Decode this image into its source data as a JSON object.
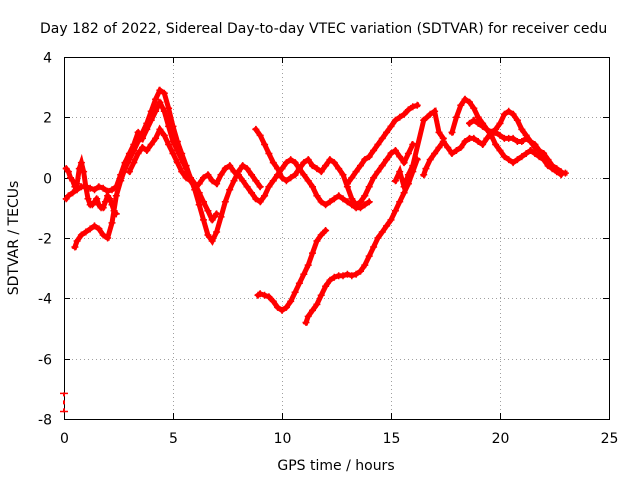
{
  "chart_data": {
    "type": "scatter",
    "title": "Day 182 of 2022, Sidereal Day-to-day VTEC variation (SDTVAR) for receiver cedu",
    "xlabel": "GPS time / hours",
    "ylabel": "SDTVAR / TECUs",
    "xlim": [
      0,
      25
    ],
    "ylim": [
      -8,
      4
    ],
    "xticks": [
      "0",
      "5",
      "10",
      "15",
      "20",
      "25"
    ],
    "yticks": [
      "-8",
      "-6",
      "-4",
      "-2",
      "0",
      "2",
      "4"
    ],
    "grid": true,
    "marker": "plus",
    "color": "#ff0000",
    "series": [
      {
        "name": "s1",
        "x": [
          0.1,
          0.2,
          0.4,
          0.6,
          0.8,
          1.0,
          1.2,
          1.4,
          1.6,
          1.8,
          2.0,
          2.2,
          2.4,
          2.6,
          2.8,
          3.0,
          3.2,
          3.4,
          3.6,
          3.8,
          4.0,
          4.2,
          4.4,
          4.6,
          4.8,
          5.0,
          5.2,
          5.4,
          5.6,
          5.8,
          6.0,
          6.2,
          6.4,
          6.6,
          6.8,
          7.0
        ],
        "y": [
          -0.7,
          -0.6,
          -0.5,
          -0.4,
          -0.3,
          -0.3,
          -0.35,
          -0.4,
          -0.3,
          -0.35,
          -0.45,
          -0.4,
          -0.3,
          0.1,
          0.5,
          0.8,
          1.1,
          1.5,
          1.3,
          1.6,
          1.9,
          2.2,
          2.5,
          2.2,
          1.7,
          1.2,
          0.9,
          0.6,
          0.3,
          0.0,
          -0.2,
          -0.5,
          -0.8,
          -1.1,
          -1.4,
          -1.2
        ]
      },
      {
        "name": "s2",
        "x": [
          0.5,
          0.6,
          0.8,
          1.0,
          1.2,
          1.4,
          1.6,
          1.8,
          2.0,
          2.2,
          2.4,
          2.6,
          2.8,
          3.0,
          3.2,
          3.4,
          3.6,
          3.8,
          4.0,
          4.2,
          4.4,
          4.6,
          4.8,
          5.0,
          5.2,
          5.4,
          5.6,
          5.8,
          6.0,
          6.2,
          6.4,
          6.6,
          6.8,
          7.0,
          7.2,
          7.4,
          7.6,
          7.8,
          8.0,
          8.2,
          8.4,
          8.6,
          8.8,
          9.0
        ],
        "y": [
          -2.3,
          -2.1,
          -1.9,
          -1.8,
          -1.7,
          -1.6,
          -1.7,
          -1.9,
          -2.0,
          -1.5,
          -0.6,
          -0.1,
          0.3,
          0.6,
          0.9,
          1.2,
          1.5,
          1.8,
          2.2,
          2.6,
          2.9,
          2.8,
          2.3,
          1.7,
          1.2,
          0.8,
          0.4,
          0.0,
          -0.4,
          -0.9,
          -1.4,
          -1.9,
          -2.1,
          -1.8,
          -1.3,
          -0.8,
          -0.4,
          -0.1,
          0.2,
          0.4,
          0.3,
          0.1,
          -0.1,
          -0.3
        ]
      },
      {
        "name": "s3",
        "x": [
          0.1,
          0.2,
          0.3,
          0.4,
          0.5,
          0.6,
          0.7,
          0.8,
          0.9,
          1.0,
          1.1,
          1.2,
          1.3,
          1.4,
          1.5,
          1.6,
          1.7,
          1.8,
          1.9,
          2.0,
          2.1,
          2.2,
          2.3,
          2.4
        ],
        "y": [
          0.3,
          0.2,
          0.0,
          -0.1,
          -0.3,
          -0.2,
          0.3,
          0.5,
          0.2,
          -0.3,
          -0.7,
          -0.9,
          -0.9,
          -0.8,
          -0.7,
          -0.9,
          -1.0,
          -1.0,
          -0.8,
          -0.6,
          -0.7,
          -0.9,
          -1.1,
          -1.2
        ]
      },
      {
        "name": "s4",
        "x": [
          3.0,
          3.2,
          3.4,
          3.6,
          3.8,
          4.0,
          4.2,
          4.4,
          4.6,
          4.8,
          5.0,
          5.2,
          5.4,
          5.6,
          5.8,
          6.0,
          6.2,
          6.4,
          6.6,
          6.8,
          7.0,
          7.2,
          7.4,
          7.6,
          7.8,
          8.0,
          8.2,
          8.4,
          8.6,
          8.8,
          9.0,
          9.2,
          9.4,
          9.6,
          9.8,
          10.0,
          10.2,
          10.4,
          10.6,
          10.8,
          11.0,
          11.2,
          11.4,
          11.6,
          11.8,
          12.0,
          12.2,
          12.4,
          12.6,
          12.8,
          13.0,
          13.2,
          13.4,
          13.6,
          13.8,
          14.0
        ],
        "y": [
          0.2,
          0.5,
          0.8,
          1.0,
          0.9,
          1.1,
          1.3,
          1.6,
          1.4,
          1.1,
          0.8,
          0.5,
          0.2,
          0.0,
          -0.1,
          -0.3,
          -0.2,
          0.0,
          0.1,
          -0.1,
          -0.2,
          0.1,
          0.3,
          0.4,
          0.2,
          0.1,
          -0.1,
          -0.3,
          -0.5,
          -0.7,
          -0.8,
          -0.6,
          -0.3,
          -0.1,
          0.1,
          0.3,
          0.5,
          0.6,
          0.5,
          0.3,
          0.1,
          -0.1,
          -0.3,
          -0.6,
          -0.8,
          -0.9,
          -0.8,
          -0.7,
          -0.6,
          -0.7,
          -0.8,
          -0.9,
          -1.0,
          -1.0,
          -0.9,
          -0.8
        ]
      },
      {
        "name": "s5",
        "x": [
          8.8,
          9.0,
          9.2,
          9.4,
          9.6,
          9.8,
          10.0,
          10.2,
          10.4,
          10.6,
          10.8,
          11.0,
          11.2,
          11.4,
          11.6,
          11.8,
          12.0,
          12.2,
          12.4,
          12.6,
          12.8,
          13.0,
          13.2,
          13.4,
          13.6,
          13.8,
          14.0,
          14.2,
          14.4,
          14.6,
          14.8,
          15.0,
          15.2,
          15.4,
          15.6,
          15.8,
          16.0
        ],
        "y": [
          1.6,
          1.4,
          1.1,
          0.8,
          0.5,
          0.3,
          0.0,
          -0.1,
          0.0,
          0.1,
          0.3,
          0.5,
          0.6,
          0.4,
          0.3,
          0.2,
          0.4,
          0.6,
          0.5,
          0.3,
          0.1,
          -0.3,
          -0.7,
          -0.9,
          -0.8,
          -0.6,
          -0.3,
          0.0,
          0.2,
          0.4,
          0.6,
          0.8,
          0.9,
          0.7,
          0.5,
          0.8,
          1.1
        ]
      },
      {
        "name": "s6",
        "x": [
          8.9,
          9.0,
          9.2,
          9.4,
          9.6,
          9.8,
          10.0,
          10.2,
          10.4,
          10.6,
          10.8,
          11.0,
          11.2,
          11.4,
          11.6,
          11.8,
          12.0
        ],
        "y": [
          -3.9,
          -3.85,
          -3.9,
          -3.95,
          -4.1,
          -4.3,
          -4.4,
          -4.3,
          -4.1,
          -3.8,
          -3.5,
          -3.2,
          -2.9,
          -2.5,
          -2.1,
          -1.9,
          -1.75
        ]
      },
      {
        "name": "s7",
        "x": [
          11.1,
          11.2,
          11.4,
          11.6,
          11.8,
          12.0,
          12.2,
          12.4,
          12.6,
          12.8,
          13.0,
          13.2,
          13.4,
          13.6,
          13.8,
          14.0,
          14.2,
          14.4,
          14.6,
          14.8,
          15.0,
          15.2,
          15.4,
          15.6,
          15.8,
          16.0,
          16.2
        ],
        "y": [
          -4.8,
          -4.6,
          -4.4,
          -4.2,
          -3.9,
          -3.6,
          -3.4,
          -3.3,
          -3.25,
          -3.25,
          -3.2,
          -3.25,
          -3.2,
          -3.1,
          -2.9,
          -2.6,
          -2.3,
          -2.0,
          -1.8,
          -1.6,
          -1.4,
          -1.1,
          -0.8,
          -0.5,
          -0.2,
          0.2,
          0.6
        ]
      },
      {
        "name": "s8",
        "x": [
          13.0,
          13.2,
          13.4,
          13.6,
          13.8,
          14.0,
          14.2,
          14.4,
          14.6,
          14.8,
          15.0,
          15.2,
          15.4,
          15.6,
          15.8,
          16.0,
          16.2
        ],
        "y": [
          -0.2,
          0.0,
          0.2,
          0.4,
          0.6,
          0.7,
          0.9,
          1.1,
          1.3,
          1.5,
          1.7,
          1.9,
          2.0,
          2.1,
          2.25,
          2.35,
          2.4
        ]
      },
      {
        "name": "s9",
        "x": [
          15.2,
          15.4,
          15.6,
          15.8,
          16.0,
          16.5,
          16.8,
          17.0,
          17.2,
          17.4
        ],
        "y": [
          -0.1,
          0.2,
          -0.3,
          0.1,
          0.4,
          1.9,
          2.1,
          2.2,
          1.5,
          1.3
        ]
      },
      {
        "name": "s10",
        "x": [
          16.5,
          16.6,
          16.8,
          17.0,
          17.2,
          17.4,
          17.6,
          17.8,
          18.0,
          18.2,
          18.4,
          18.6,
          18.8,
          19.0,
          19.2,
          19.4,
          19.6,
          19.8,
          20.0,
          20.2,
          20.4,
          20.6,
          20.8,
          21.0,
          21.2,
          21.4,
          21.6,
          21.8,
          22.0,
          22.2,
          22.4,
          22.6,
          22.8,
          23.0
        ],
        "y": [
          0.1,
          0.3,
          0.6,
          0.8,
          1.0,
          1.2,
          1.0,
          0.8,
          0.9,
          1.0,
          1.2,
          1.3,
          1.3,
          1.2,
          1.1,
          1.3,
          1.5,
          1.5,
          1.4,
          1.3,
          1.3,
          1.3,
          1.2,
          1.2,
          1.3,
          1.2,
          1.1,
          0.9,
          0.7,
          0.5,
          0.3,
          0.2,
          0.15,
          0.15
        ]
      },
      {
        "name": "s11",
        "x": [
          17.8,
          18.0,
          18.2,
          18.4,
          18.6,
          18.8,
          19.0,
          19.2,
          19.4,
          19.6,
          19.8,
          20.0,
          20.2,
          20.4,
          20.6,
          20.8,
          21.0,
          21.2,
          21.4,
          21.6,
          21.8,
          22.0,
          22.2,
          22.4,
          22.6,
          22.8
        ],
        "y": [
          1.5,
          2.0,
          2.4,
          2.6,
          2.5,
          2.3,
          2.0,
          1.8,
          1.6,
          1.4,
          1.1,
          0.9,
          0.7,
          0.6,
          0.5,
          0.6,
          0.7,
          0.8,
          0.9,
          0.8,
          0.7,
          0.6,
          0.4,
          0.3,
          0.2,
          0.1
        ]
      },
      {
        "name": "s12",
        "x": [
          18.6,
          18.8,
          19.0,
          19.2,
          19.4,
          19.6,
          19.8,
          20.0,
          20.2,
          20.4,
          20.6,
          20.8,
          21.0,
          21.2,
          21.4,
          21.6,
          21.8,
          22.0,
          22.2,
          22.4,
          22.6,
          22.8
        ],
        "y": [
          1.8,
          1.9,
          1.8,
          1.7,
          1.6,
          1.5,
          1.6,
          1.8,
          2.1,
          2.2,
          2.1,
          1.9,
          1.6,
          1.4,
          1.2,
          1.0,
          0.9,
          0.8,
          0.6,
          0.4,
          0.3,
          0.2
        ]
      },
      {
        "name": "s13",
        "x": [
          0.0,
          0.0
        ],
        "y": [
          -7.15,
          -7.75
        ]
      }
    ]
  }
}
